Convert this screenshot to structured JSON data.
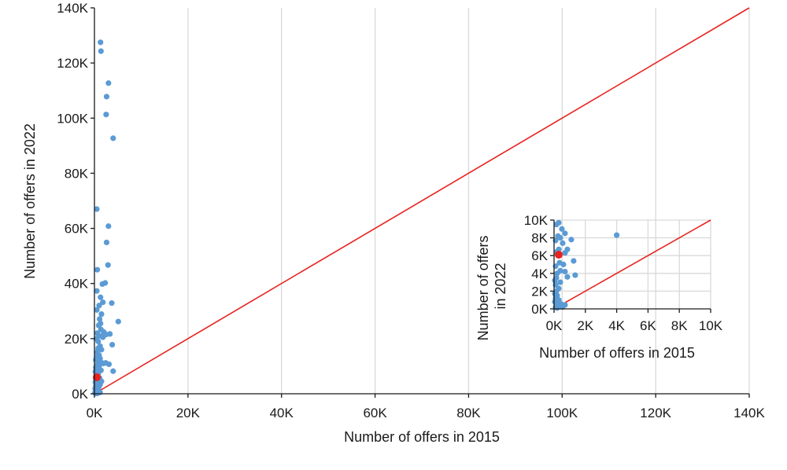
{
  "chart_data": [
    {
      "type": "scatter",
      "xlabel": "Number of offers in 2015",
      "ylabel": "Number of offers in 2022",
      "xlim": [
        0,
        140000
      ],
      "ylim": [
        0,
        140000
      ],
      "x_ticks": [
        0,
        20000,
        40000,
        60000,
        80000,
        100000,
        120000,
        140000
      ],
      "x_tick_labels": [
        "0K",
        "20K",
        "40K",
        "60K",
        "80K",
        "100K",
        "120K",
        "140K"
      ],
      "y_ticks": [
        0,
        20000,
        40000,
        60000,
        80000,
        100000,
        120000,
        140000
      ],
      "y_tick_labels": [
        "0K",
        "20K",
        "40K",
        "60K",
        "80K",
        "100K",
        "120K",
        "140K"
      ],
      "grid": "vertical",
      "reference_line": {
        "from": [
          0,
          0
        ],
        "to": [
          140000,
          140000
        ],
        "color": "#e8221f"
      },
      "colors": {
        "points": "#5b9bd5",
        "highlight": "#e8221f",
        "grid": "#d9d9d9",
        "axis": "#1a1a1a"
      },
      "series": [
        {
          "color": "#5b9bd5",
          "points": [
            [
              1300,
              127500
            ],
            [
              1400,
              124300
            ],
            [
              3000,
              112700
            ],
            [
              2600,
              107800
            ],
            [
              2500,
              101300
            ],
            [
              4000,
              92700
            ],
            [
              500,
              67000
            ],
            [
              3000,
              60800
            ],
            [
              2600,
              54900
            ],
            [
              2900,
              46700
            ],
            [
              600,
              45000
            ],
            [
              2300,
              40200
            ],
            [
              1700,
              39800
            ],
            [
              500,
              37300
            ],
            [
              1300,
              35000
            ],
            [
              1800,
              33200
            ],
            [
              3700,
              32900
            ],
            [
              1000,
              32000
            ],
            [
              500,
              30400
            ],
            [
              1500,
              28900
            ],
            [
              5100,
              26200
            ],
            [
              1100,
              27100
            ],
            [
              1300,
              25500
            ],
            [
              900,
              24800
            ],
            [
              1400,
              23300
            ],
            [
              2000,
              22400
            ],
            [
              600,
              22000
            ],
            [
              3300,
              21700
            ],
            [
              1900,
              21400
            ],
            [
              2500,
              21500
            ],
            [
              1000,
              21000
            ],
            [
              1800,
              20500
            ],
            [
              400,
              20000
            ],
            [
              800,
              19000
            ],
            [
              3800,
              17800
            ],
            [
              1200,
              17300
            ],
            [
              800,
              16500
            ],
            [
              1500,
              16000
            ],
            [
              500,
              15000
            ],
            [
              1000,
              14000
            ],
            [
              600,
              13300
            ],
            [
              1200,
              12800
            ],
            [
              300,
              12300
            ],
            [
              800,
              11700
            ],
            [
              1500,
              11300
            ],
            [
              2400,
              11200
            ],
            [
              1900,
              11000
            ],
            [
              3100,
              10700
            ],
            [
              500,
              10300
            ],
            [
              1000,
              10000
            ],
            [
              300,
              9500
            ],
            [
              700,
              8800
            ],
            [
              1400,
              8500
            ],
            [
              4000,
              8200
            ],
            [
              200,
              8000
            ],
            [
              800,
              7200
            ],
            [
              400,
              6800
            ],
            [
              1100,
              5700
            ],
            [
              300,
              5200
            ],
            [
              1500,
              4500
            ],
            [
              200,
              4200
            ],
            [
              700,
              3700
            ],
            [
              1200,
              3300
            ],
            [
              300,
              2800
            ],
            [
              900,
              2300
            ],
            [
              150,
              1900
            ],
            [
              500,
              1500
            ],
            [
              800,
              1100
            ],
            [
              200,
              700
            ],
            [
              1200,
              500
            ],
            [
              100,
              300
            ],
            [
              700,
              200
            ],
            [
              400,
              100
            ]
          ]
        },
        {
          "color": "#e8221f",
          "points": [
            [
              500,
              6000
            ]
          ]
        }
      ]
    },
    {
      "type": "scatter",
      "xlabel": "Number of offers in 2015",
      "ylabel_lines": [
        "Number of offers",
        "in 2022"
      ],
      "xlim": [
        0,
        10000
      ],
      "ylim": [
        0,
        10000
      ],
      "x_ticks": [
        0,
        2000,
        4000,
        6000,
        8000,
        10000
      ],
      "x_tick_labels": [
        "0K",
        "2K",
        "4K",
        "6K",
        "8K",
        "10K"
      ],
      "y_ticks": [
        0,
        2000,
        4000,
        6000,
        8000,
        10000
      ],
      "y_tick_labels": [
        "0K",
        "2K",
        "4K",
        "6K",
        "8K",
        "10K"
      ],
      "grid": "both",
      "reference_line": {
        "from": [
          0,
          0
        ],
        "to": [
          10000,
          10000
        ],
        "color": "#e8221f"
      },
      "series": [
        {
          "color": "#5b9bd5",
          "points": [
            [
              4000,
              8300
            ],
            [
              1100,
              7800
            ],
            [
              300,
              9700
            ],
            [
              150,
              9500
            ],
            [
              500,
              9000
            ],
            [
              700,
              8500
            ],
            [
              250,
              8200
            ],
            [
              400,
              8000
            ],
            [
              100,
              7700
            ],
            [
              550,
              7400
            ],
            [
              850,
              6700
            ],
            [
              700,
              6300
            ],
            [
              300,
              6700
            ],
            [
              150,
              6400
            ],
            [
              1250,
              5400
            ],
            [
              600,
              5000
            ],
            [
              350,
              5200
            ],
            [
              100,
              4800
            ],
            [
              1350,
              3800
            ],
            [
              700,
              4200
            ],
            [
              850,
              3600
            ],
            [
              400,
              4300
            ],
            [
              200,
              4000
            ],
            [
              150,
              3500
            ],
            [
              50,
              3200
            ],
            [
              400,
              3000
            ],
            [
              100,
              2700
            ],
            [
              300,
              2300
            ],
            [
              150,
              2000
            ],
            [
              50,
              1700
            ],
            [
              200,
              1500
            ],
            [
              100,
              1200
            ],
            [
              300,
              1000
            ],
            [
              50,
              800
            ],
            [
              150,
              600
            ],
            [
              250,
              450
            ],
            [
              450,
              550
            ],
            [
              700,
              450
            ],
            [
              350,
              300
            ],
            [
              100,
              200
            ],
            [
              550,
              200
            ],
            [
              200,
              100
            ]
          ]
        },
        {
          "color": "#e8221f",
          "points": [
            [
              300,
              6100
            ]
          ]
        }
      ]
    }
  ]
}
